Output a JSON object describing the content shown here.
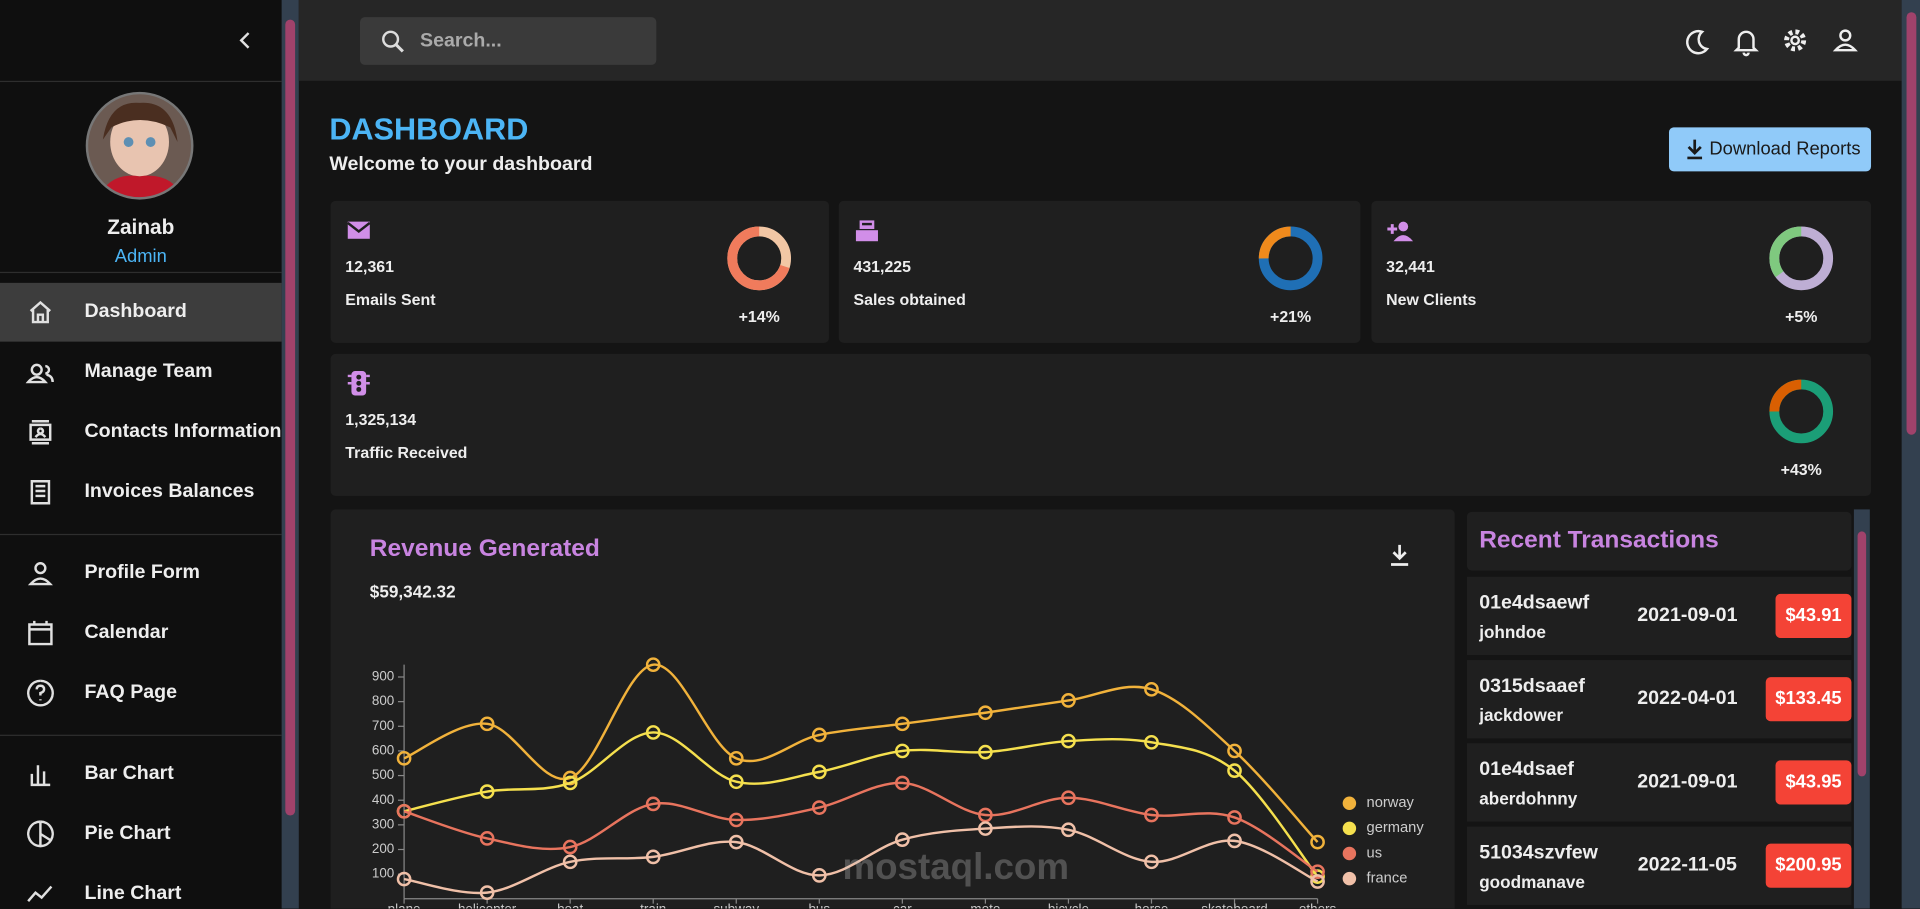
{
  "sidebar": {
    "user": {
      "name": "Zainab",
      "role": "Admin"
    },
    "nav": [
      [
        "Dashboard",
        "Manage Team",
        "Contacts Information",
        "Invoices Balances"
      ],
      [
        "Profile Form",
        "Calendar",
        "FAQ Page"
      ],
      [
        "Bar Chart",
        "Pie Chart",
        "Line Chart"
      ]
    ]
  },
  "topbar": {
    "search_placeholder": "Search..."
  },
  "header": {
    "title": "DASHBOARD",
    "subtitle": "Welcome to your dashboard",
    "button": "Download Reports"
  },
  "stats": [
    {
      "value": "12,361",
      "label": "Emails Sent",
      "increase": "+14%",
      "progress": 0.7,
      "colors": [
        "#f07b5c",
        "#f2c7a5"
      ]
    },
    {
      "value": "431,225",
      "label": "Sales obtained",
      "increase": "+21%",
      "progress": 0.25,
      "colors": [
        "#f08a1c",
        "#1f6fb5"
      ]
    },
    {
      "value": "32,441",
      "label": "New Clients",
      "increase": "+5%",
      "progress": 0.35,
      "colors": [
        "#7fc97f",
        "#beaed4"
      ]
    },
    {
      "value": "1,325,134",
      "label": "Traffic Received",
      "increase": "+43%",
      "progress": 0.25,
      "colors": [
        "#d95f02",
        "#1b9e77"
      ]
    }
  ],
  "revenue": {
    "title": "Revenue Generated",
    "amount": "$59,342.32"
  },
  "chart_data": {
    "type": "line",
    "categories": [
      "plane",
      "helicopter",
      "boat",
      "train",
      "subway",
      "bus",
      "car",
      "moto",
      "bicycle",
      "horse",
      "skateboard",
      "others"
    ],
    "series": [
      {
        "name": "norway",
        "color": "#f1b23b",
        "values": [
          570,
          710,
          490,
          950,
          570,
          665,
          710,
          755,
          805,
          850,
          600,
          230
        ]
      },
      {
        "name": "germany",
        "color": "#f5e04e",
        "values": [
          355,
          435,
          470,
          675,
          475,
          515,
          600,
          595,
          640,
          635,
          520,
          90
        ]
      },
      {
        "name": "us",
        "color": "#e8745e",
        "values": [
          355,
          245,
          210,
          385,
          320,
          370,
          470,
          340,
          410,
          340,
          330,
          110
        ]
      },
      {
        "name": "france",
        "color": "#f0c0a8",
        "values": [
          80,
          25,
          150,
          170,
          230,
          95,
          240,
          285,
          280,
          150,
          235,
          70
        ]
      }
    ],
    "ylim": [
      0,
      950
    ],
    "yticks": [
      100,
      200,
      300,
      400,
      500,
      600,
      700,
      800,
      900
    ]
  },
  "transactions": {
    "title": "Recent Transactions",
    "rows": [
      {
        "txId": "01e4dsaewf",
        "user": "johndoe",
        "date": "2021-09-01",
        "cost": "$43.91"
      },
      {
        "txId": "0315dsaaef",
        "user": "jackdower",
        "date": "2022-04-01",
        "cost": "$133.45"
      },
      {
        "txId": "01e4dsaef",
        "user": "aberdohnny",
        "date": "2021-09-01",
        "cost": "$43.95"
      },
      {
        "txId": "51034szvfew",
        "user": "goodmanave",
        "date": "2022-11-05",
        "cost": "$200.95"
      }
    ]
  },
  "watermark": "mostaql.com"
}
